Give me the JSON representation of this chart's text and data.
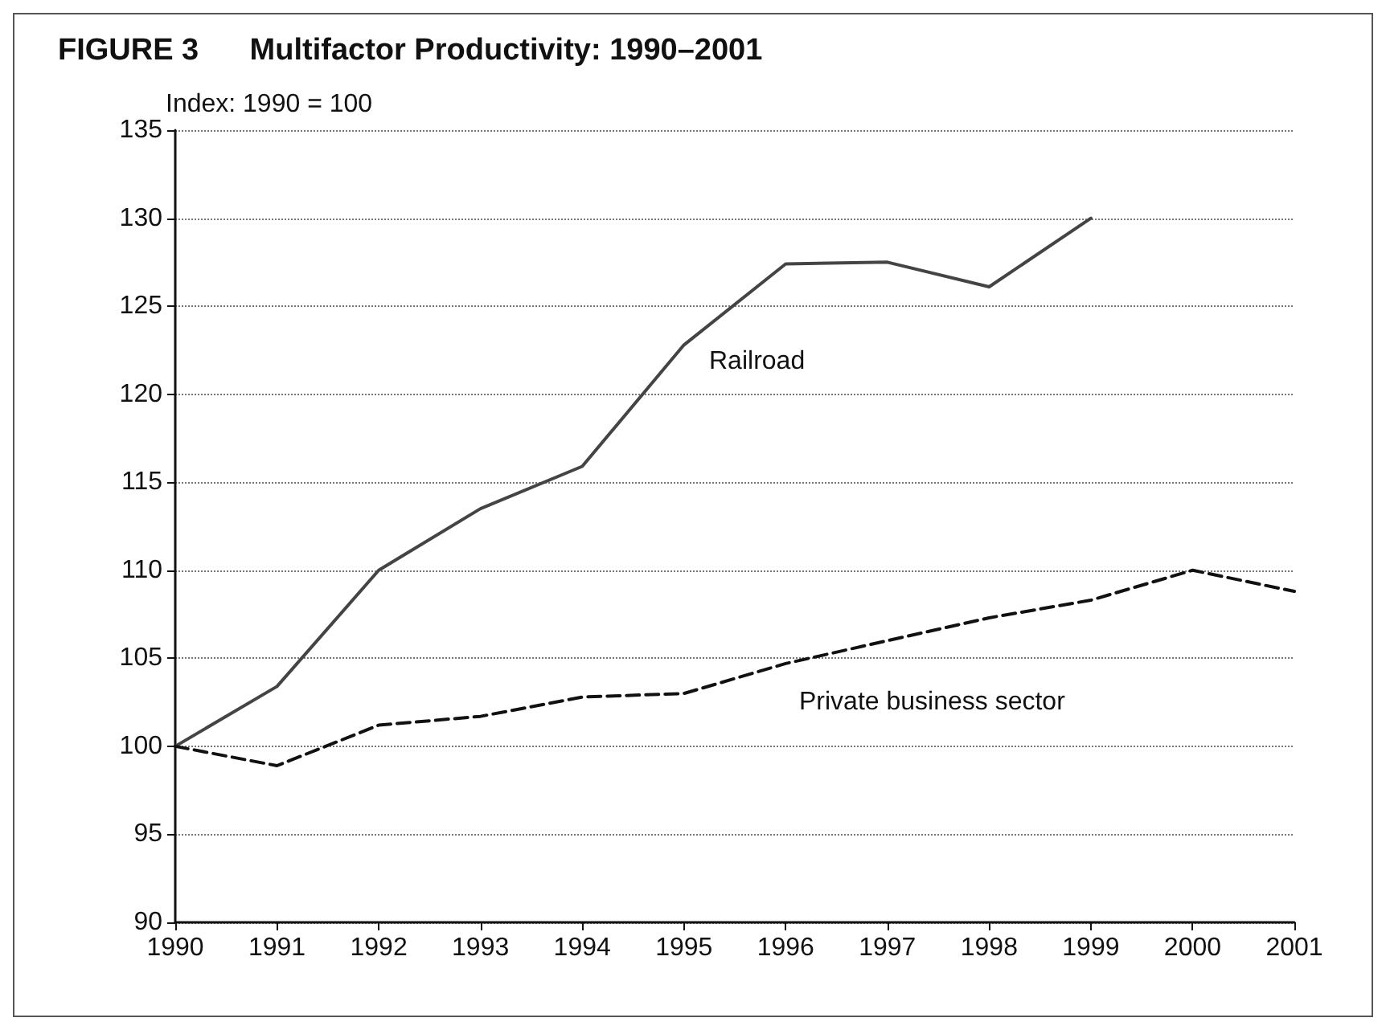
{
  "chart_data": {
    "type": "line",
    "title": "FIGURE 3      Multifactor Productivity: 1990–2001",
    "ylabel": "Index: 1990 = 100",
    "x": [
      1990,
      1991,
      1992,
      1993,
      1994,
      1995,
      1996,
      1997,
      1998,
      1999,
      2000,
      2001
    ],
    "series": [
      {
        "name": "Railroad",
        "color": "#444444",
        "line_style": "solid",
        "values": [
          100,
          103.4,
          110,
          113.5,
          115.9,
          122.8,
          127.4,
          127.5,
          126.1,
          130,
          null,
          null
        ]
      },
      {
        "name": "Private business sector",
        "color": "#111111",
        "line_style": "dashed",
        "values": [
          100,
          98.9,
          101.2,
          101.7,
          102.8,
          103,
          104.7,
          106,
          107.3,
          108.3,
          110,
          108.8
        ]
      }
    ],
    "xlim": [
      1990,
      2001
    ],
    "xticks": [
      1990,
      1991,
      1992,
      1993,
      1994,
      1995,
      1996,
      1997,
      1998,
      1999,
      2000,
      2001
    ],
    "ylim": [
      90,
      135
    ],
    "yticks": [
      90,
      95,
      100,
      105,
      110,
      115,
      120,
      125,
      130,
      135
    ],
    "grid": "y",
    "marker": "none"
  }
}
